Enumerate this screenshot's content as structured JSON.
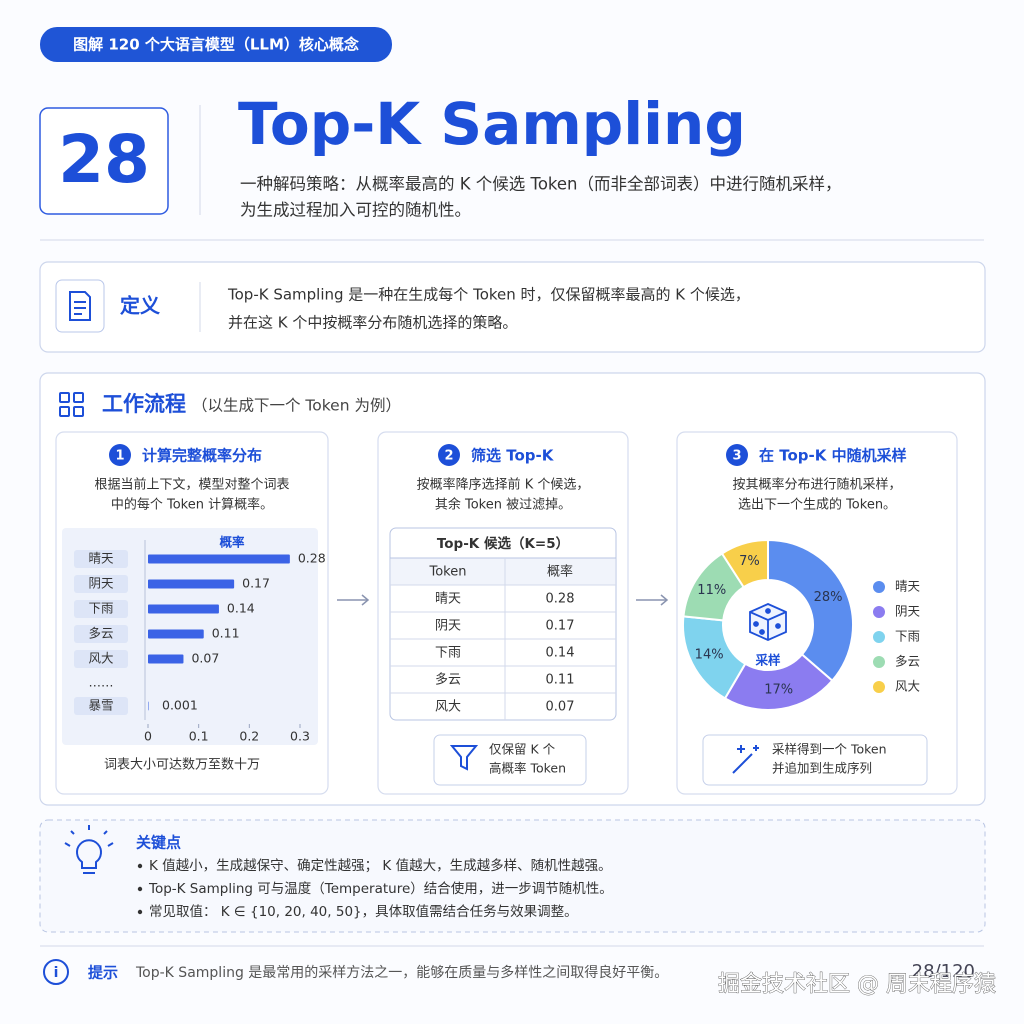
{
  "badge": "图解 120 个大语言模型（LLM）核心概念",
  "header": {
    "number": "28",
    "title": "Top-K Sampling",
    "subtitle": [
      "一种解码策略：从概率最高的 K 个候选 Token（而非全部词表）中进行随机采样，",
      "为生成过程加入可控的随机性。"
    ]
  },
  "definition": {
    "label": "定义",
    "lines": [
      "Top-K Sampling 是一种在生成每个 Token 时，仅保留概率最高的 K 个候选，",
      "并在这 K 个中按概率分布随机选择的策略。"
    ]
  },
  "workflow": {
    "title": "工作流程",
    "subtitle": "（以生成下一个 Token 为例）",
    "steps": [
      {
        "number": "1",
        "title": "计算完整概率分布",
        "desc": [
          "根据当前上下文，模型对整个词表",
          "中的每个 Token 计算概率。"
        ],
        "note": [
          "词表大小可达数万至数十万"
        ]
      },
      {
        "number": "2",
        "title": "筛选 Top-K",
        "desc": [
          "按概率降序选择前 K 个候选，",
          "其余 Token 被过滤掉。"
        ],
        "note": [
          "仅保留 K 个",
          "高概率 Token"
        ]
      },
      {
        "number": "3",
        "title": "在 Top-K 中随机采样",
        "desc": [
          "按其概率分布进行随机采样，",
          "选出下一个生成的 Token。"
        ],
        "note": [
          "采样得到一个 Token",
          "并追加到生成序列"
        ]
      }
    ]
  },
  "table": {
    "title": "Top-K 候选（K=5）",
    "columns": [
      "Token",
      "概率"
    ],
    "rows": [
      [
        "晴天",
        "0.28"
      ],
      [
        "阴天",
        "0.17"
      ],
      [
        "下雨",
        "0.14"
      ],
      [
        "多云",
        "0.11"
      ],
      [
        "风大",
        "0.07"
      ]
    ]
  },
  "key_points": {
    "title": "关键点",
    "items": [
      "K 值越小，生成越保守、确定性越强； K 值越大，生成越多样、随机性越强。",
      "Top-K Sampling 可与温度（Temperature）结合使用，进一步调节随机性。",
      "常见取值： K ∈ {10, 20, 40, 50}，具体取值需结合任务与效果调整。"
    ]
  },
  "tip": {
    "label": "提示",
    "text": "Top-K Sampling 是最常用的采样方法之一，能够在质量与多样性之间取得良好平衡。",
    "page": "28/120"
  },
  "watermark": "掘金技术社区 @ 周末程序猿",
  "chart_data": [
    {
      "type": "bar",
      "orientation": "horizontal",
      "title": "概率",
      "color": "#3b63e6",
      "categories": [
        "晴天",
        "阴天",
        "下雨",
        "多云",
        "风大",
        "……",
        "暴雪"
      ],
      "values": [
        0.28,
        0.17,
        0.14,
        0.11,
        0.07,
        null,
        0.001
      ],
      "xlim": [
        0,
        0.3
      ],
      "xticks": [
        0,
        0.1,
        0.2,
        0.3
      ]
    },
    {
      "type": "pie",
      "center_label": "采样",
      "categories": [
        "晴天",
        "阴天",
        "下雨",
        "多云",
        "风大"
      ],
      "values": [
        28,
        17,
        14,
        11,
        7
      ],
      "value_labels": [
        "28%",
        "17%",
        "14%",
        "11%",
        "7%"
      ],
      "colors": [
        "#5b8def",
        "#8b7cf0",
        "#7fd3ee",
        "#9ddcb3",
        "#f8cf4a"
      ]
    }
  ]
}
